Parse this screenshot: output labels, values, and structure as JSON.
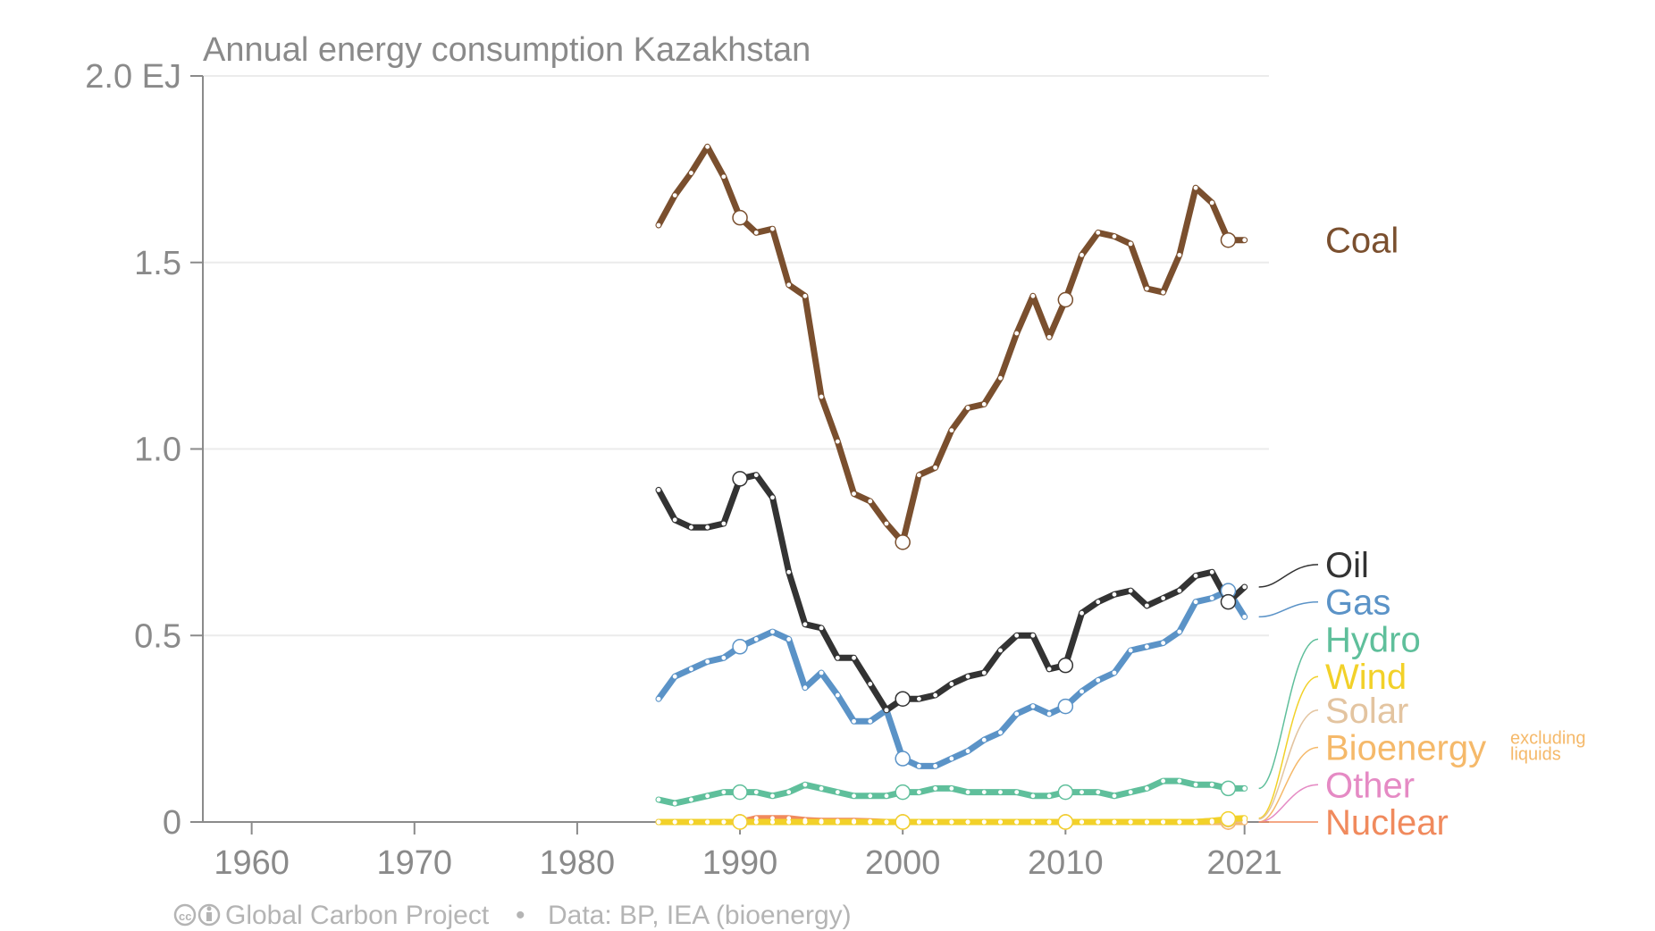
{
  "chart_data": {
    "type": "line",
    "title": "Annual energy consumption Kazakhstan",
    "xlabel": "",
    "ylabel": "",
    "xlim": [
      1957,
      1963.5
    ],
    "x_ticks": [
      1960,
      1970,
      1980,
      1990,
      2000,
      2010,
      2021
    ],
    "ylim": [
      0,
      2.0
    ],
    "y_ticks": [
      {
        "value": 0,
        "label": "0"
      },
      {
        "value": 0.5,
        "label": "0.5"
      },
      {
        "value": 1.0,
        "label": "1.0"
      },
      {
        "value": 1.5,
        "label": "1.5"
      },
      {
        "value": 2.0,
        "label": "2.0 EJ"
      }
    ],
    "grid": true,
    "legend": "right, labels at line ends",
    "x": [
      1985,
      1986,
      1987,
      1988,
      1989,
      1990,
      1991,
      1992,
      1993,
      1994,
      1995,
      1996,
      1997,
      1998,
      1999,
      2000,
      2001,
      2002,
      2003,
      2004,
      2005,
      2006,
      2007,
      2008,
      2009,
      2010,
      2011,
      2012,
      2013,
      2014,
      2015,
      2016,
      2017,
      2018,
      2019,
      2020,
      2021
    ],
    "series": [
      {
        "name": "Coal",
        "color": "#7a4f2e",
        "label_y": 1.56,
        "values": [
          1.6,
          1.68,
          1.74,
          1.81,
          1.73,
          1.62,
          1.58,
          1.59,
          1.44,
          1.41,
          1.14,
          1.02,
          0.88,
          0.86,
          0.8,
          0.75,
          0.93,
          0.95,
          1.05,
          1.11,
          1.12,
          1.19,
          1.31,
          1.41,
          1.3,
          1.4,
          1.52,
          1.58,
          1.57,
          1.55,
          1.43,
          1.42,
          1.52,
          1.7,
          1.66,
          1.56,
          1.56
        ]
      },
      {
        "name": "Oil",
        "color": "#333333",
        "label_y": 0.69,
        "values": [
          0.89,
          0.81,
          0.79,
          0.79,
          0.8,
          0.92,
          0.93,
          0.87,
          0.67,
          0.53,
          0.52,
          0.44,
          0.44,
          0.37,
          0.3,
          0.33,
          0.33,
          0.34,
          0.37,
          0.39,
          0.4,
          0.46,
          0.5,
          0.5,
          0.41,
          0.42,
          0.56,
          0.59,
          0.61,
          0.62,
          0.58,
          0.6,
          0.62,
          0.66,
          0.67,
          0.59,
          0.63
        ]
      },
      {
        "name": "Gas",
        "color": "#5b93c7",
        "label_y": 0.59,
        "values": [
          0.33,
          0.39,
          0.41,
          0.43,
          0.44,
          0.47,
          0.49,
          0.51,
          0.49,
          0.36,
          0.4,
          0.34,
          0.27,
          0.27,
          0.3,
          0.17,
          0.15,
          0.15,
          0.17,
          0.19,
          0.22,
          0.24,
          0.29,
          0.31,
          0.29,
          0.31,
          0.35,
          0.38,
          0.4,
          0.46,
          0.47,
          0.48,
          0.51,
          0.59,
          0.6,
          0.62,
          0.55
        ]
      },
      {
        "name": "Hydro",
        "color": "#5fbf9b",
        "label_y": 0.49,
        "values": [
          0.06,
          0.05,
          0.06,
          0.07,
          0.08,
          0.08,
          0.08,
          0.07,
          0.08,
          0.1,
          0.09,
          0.08,
          0.07,
          0.07,
          0.07,
          0.08,
          0.08,
          0.09,
          0.09,
          0.08,
          0.08,
          0.08,
          0.08,
          0.07,
          0.07,
          0.08,
          0.08,
          0.08,
          0.07,
          0.08,
          0.09,
          0.11,
          0.11,
          0.1,
          0.1,
          0.09,
          0.09
        ]
      },
      {
        "name": "Wind",
        "color": "#f2d129",
        "label_y": 0.39,
        "values": [
          0,
          0,
          0,
          0,
          0,
          0,
          0,
          0,
          0,
          0,
          0,
          0,
          0,
          0,
          0,
          0,
          0,
          0,
          0,
          0,
          0,
          0,
          0,
          0,
          0,
          0,
          0,
          0,
          0,
          0,
          0,
          0,
          0,
          0,
          0.003,
          0.008,
          0.01
        ]
      },
      {
        "name": "Solar",
        "color": "#e3c4a0",
        "label_y": 0.3,
        "values": [
          0,
          0,
          0,
          0,
          0,
          0,
          0,
          0,
          0,
          0,
          0,
          0,
          0,
          0,
          0,
          0,
          0,
          0,
          0,
          0,
          0,
          0,
          0,
          0,
          0,
          0,
          0,
          0,
          0,
          0,
          0,
          0,
          0,
          0,
          0.003,
          0.006,
          0.008
        ]
      },
      {
        "name": "Bioenergy",
        "note": [
          "excluding",
          "liquids"
        ],
        "color": "#f5b96a",
        "label_y": 0.2,
        "values": [
          0,
          0,
          0,
          0,
          0,
          0,
          0,
          0,
          0,
          0,
          0,
          0,
          0,
          0,
          0,
          0,
          0,
          0,
          0,
          0,
          0,
          0,
          0,
          0,
          0,
          0,
          0,
          0,
          0,
          0,
          0,
          0,
          0,
          0,
          0,
          0,
          0
        ]
      },
      {
        "name": "Other",
        "color": "#e58ac4",
        "label_y": 0.1,
        "values": [
          0,
          0,
          0,
          0,
          0,
          0,
          0,
          0,
          0,
          0,
          0,
          0,
          0,
          0,
          0,
          0,
          0,
          0,
          0,
          0,
          0,
          0,
          0,
          0,
          0,
          0,
          0,
          0,
          0,
          0,
          0,
          0,
          0,
          0,
          0,
          0,
          0
        ]
      },
      {
        "name": "Nuclear",
        "color": "#f08a5d",
        "label_y": 0.0,
        "values": [
          0,
          0,
          0,
          0,
          0,
          0,
          0.01,
          0.01,
          0.01,
          0.005,
          0.003,
          0.003,
          0.003,
          0.002,
          0,
          0,
          0,
          0,
          0,
          0,
          0,
          0,
          0,
          0,
          0,
          0,
          0,
          0,
          0,
          0,
          0,
          0,
          0,
          0,
          0,
          0,
          0
        ]
      }
    ],
    "highlight_years": [
      1990,
      2000,
      2010,
      2020
    ]
  },
  "footer": {
    "cc_icon": "creative-commons-icon",
    "credit": "Global Carbon Project",
    "separator": "•",
    "source": "Data: BP, IEA (bioenergy)"
  }
}
